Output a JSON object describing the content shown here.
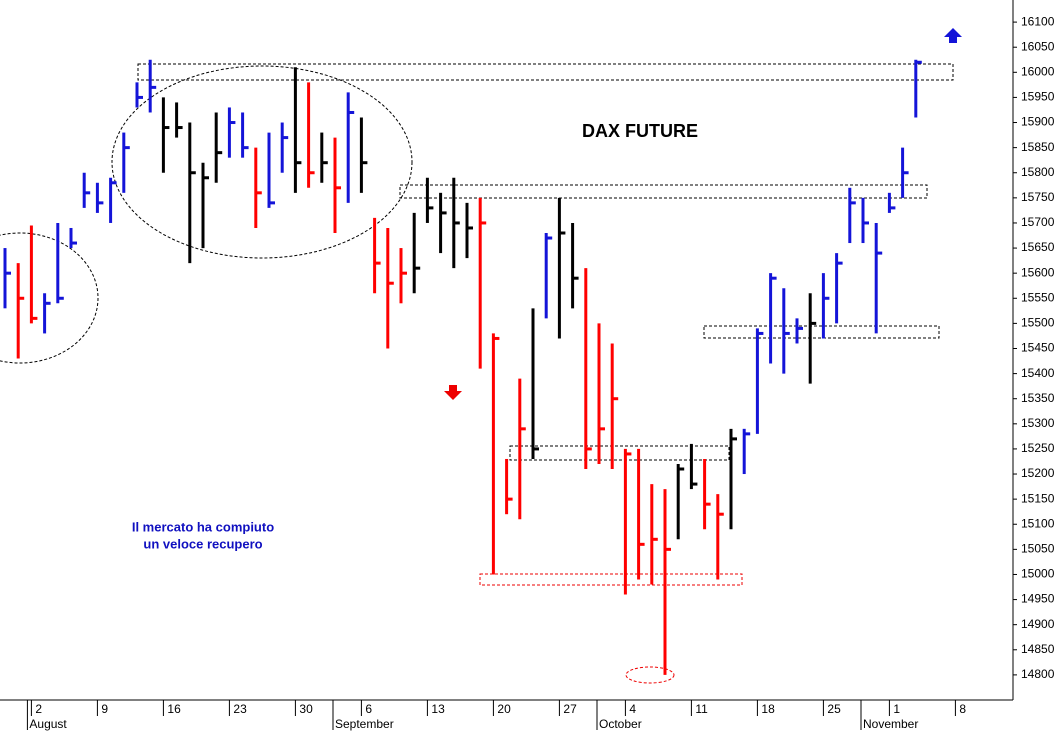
{
  "chart_data": {
    "type": "ohlc",
    "title": "DAX FUTURE",
    "annotations": [
      "Il mercato ha compiuto",
      "un veloce recupero"
    ],
    "months": [
      "August",
      "September",
      "October",
      "November"
    ],
    "categories": [
      null,
      null,
      "2",
      null,
      null,
      null,
      null,
      "9",
      null,
      null,
      null,
      null,
      "16",
      null,
      null,
      null,
      null,
      "23",
      null,
      null,
      null,
      null,
      "30",
      null,
      null,
      null,
      null,
      "6",
      null,
      null,
      null,
      null,
      "13",
      null,
      null,
      null,
      null,
      "20",
      null,
      null,
      null,
      null,
      "27",
      null,
      null,
      null,
      null,
      "4",
      null,
      null,
      null,
      null,
      "11",
      null,
      null,
      null,
      null,
      "18",
      null,
      null,
      null,
      null,
      "25",
      null,
      null,
      null,
      null,
      "1",
      null,
      null,
      null,
      null,
      "8"
    ],
    "high": [
      15650,
      15620,
      15695,
      15560,
      15700,
      15690,
      15800,
      15780,
      15790,
      15880,
      15980,
      16025,
      15950,
      15940,
      15900,
      15820,
      15920,
      15930,
      15920,
      15850,
      15880,
      15900,
      16010,
      15980,
      15880,
      15870,
      15960,
      15910,
      15710,
      15690,
      15650,
      15720,
      15790,
      15760,
      15790,
      15740,
      15750,
      15480,
      15230,
      15390,
      15530,
      15680,
      15750,
      15700,
      15610,
      15500,
      15460,
      15250,
      15250,
      15180,
      15170,
      15220,
      15260,
      15230,
      15160,
      15290,
      15290,
      15490,
      15600,
      15570,
      15510,
      15560,
      15600,
      15640,
      15770,
      15750,
      15700,
      15760,
      15850,
      16025,
      null,
      null,
      null
    ],
    "low": [
      15530,
      15430,
      15500,
      15480,
      15540,
      15650,
      15730,
      15720,
      15700,
      15760,
      15930,
      15920,
      15800,
      15870,
      15620,
      15650,
      15780,
      15830,
      15830,
      15690,
      15730,
      15800,
      15760,
      15770,
      15780,
      15680,
      15740,
      15760,
      15560,
      15450,
      15540,
      15560,
      15700,
      15640,
      15610,
      15630,
      15410,
      15000,
      15120,
      15110,
      15230,
      15510,
      15470,
      15530,
      15210,
      15220,
      15210,
      14960,
      14990,
      14980,
      14800,
      15070,
      15170,
      15090,
      14990,
      15090,
      15200,
      15280,
      15420,
      15400,
      15460,
      15380,
      15470,
      15500,
      15660,
      15660,
      15480,
      15720,
      15750,
      15910,
      null,
      null,
      null
    ],
    "close": [
      15600,
      15550,
      15510,
      15540,
      15550,
      15660,
      15760,
      15740,
      15780,
      15850,
      15950,
      15970,
      15890,
      15890,
      15800,
      15790,
      15840,
      15900,
      15850,
      15760,
      15740,
      15870,
      15820,
      15800,
      15820,
      15770,
      15920,
      15820,
      15620,
      15580,
      15600,
      15610,
      15730,
      15720,
      15700,
      15690,
      15700,
      15470,
      15150,
      15290,
      15250,
      15670,
      15680,
      15590,
      15250,
      15290,
      15350,
      15240,
      15060,
      15070,
      15050,
      15210,
      15180,
      15140,
      15120,
      15270,
      15280,
      15480,
      15590,
      15480,
      15490,
      15500,
      15550,
      15620,
      15740,
      15700,
      15640,
      15730,
      15800,
      16020,
      null,
      null,
      null
    ],
    "colors": [
      "#1414d8",
      "#ff0000",
      "#ff0000",
      "#1414d8",
      "#1414d8",
      "#1414d8",
      "#1414d8",
      "#1414d8",
      "#1414d8",
      "#1414d8",
      "#1414d8",
      "#1414d8",
      "#000000",
      "#000000",
      "#000000",
      "#000000",
      "#000000",
      "#1414d8",
      "#1414d8",
      "#ff0000",
      "#1414d8",
      "#1414d8",
      "#000000",
      "#ff0000",
      "#000000",
      "#ff0000",
      "#1414d8",
      "#000000",
      "#ff0000",
      "#ff0000",
      "#ff0000",
      "#000000",
      "#000000",
      "#000000",
      "#000000",
      "#000000",
      "#ff0000",
      "#ff0000",
      "#ff0000",
      "#ff0000",
      "#000000",
      "#1414d8",
      "#000000",
      "#000000",
      "#ff0000",
      "#ff0000",
      "#ff0000",
      "#ff0000",
      "#ff0000",
      "#ff0000",
      "#ff0000",
      "#000000",
      "#000000",
      "#ff0000",
      "#ff0000",
      "#000000",
      "#1414d8",
      "#1414d8",
      "#1414d8",
      "#1414d8",
      "#1414d8",
      "#000000",
      "#1414d8",
      "#1414d8",
      "#1414d8",
      "#1414d8",
      "#1414d8",
      "#1414d8",
      "#1414d8",
      "#1414d8",
      null,
      null,
      null
    ],
    "ylim": [
      14750,
      16144
    ],
    "yticks": [
      14800,
      14850,
      14900,
      14950,
      15000,
      15050,
      15100,
      15150,
      15200,
      15250,
      15300,
      15350,
      15400,
      15450,
      15500,
      15550,
      15600,
      15650,
      15700,
      15750,
      15800,
      15850,
      15900,
      15950,
      16000,
      16050,
      16100
    ]
  }
}
